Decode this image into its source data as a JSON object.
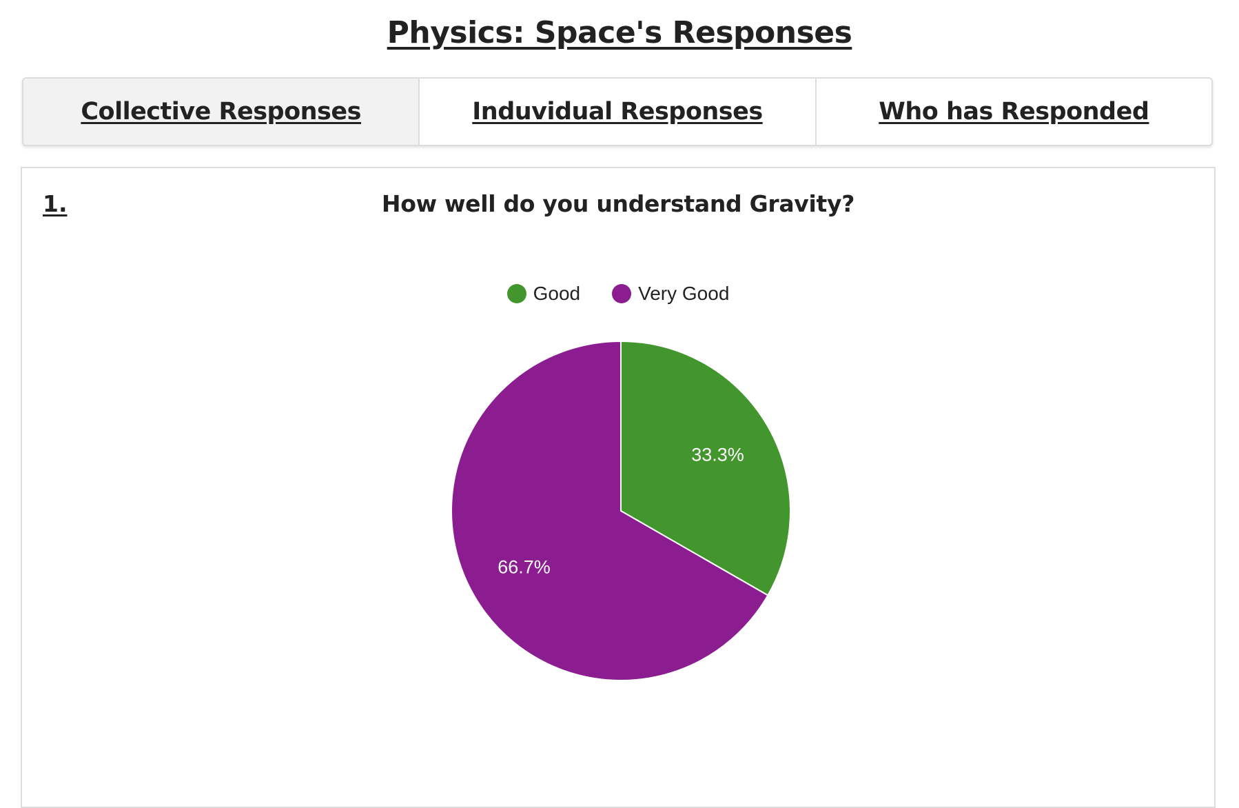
{
  "page": {
    "title": "Physics: Space's Responses"
  },
  "tabs": [
    {
      "label": "Collective Responses",
      "active": true
    },
    {
      "label": "Induvidual Responses",
      "active": false
    },
    {
      "label": "Who has Responded",
      "active": false
    }
  ],
  "question": {
    "number": "1.",
    "text": "How well do you understand Gravity?"
  },
  "chart_data": {
    "type": "pie",
    "categories": [
      "Good",
      "Very Good"
    ],
    "values": [
      33.3,
      66.7
    ],
    "labels": [
      "33.3%",
      "66.7%"
    ],
    "colors": [
      "#43962e",
      "#8b1d91"
    ],
    "legend_position": "top"
  }
}
